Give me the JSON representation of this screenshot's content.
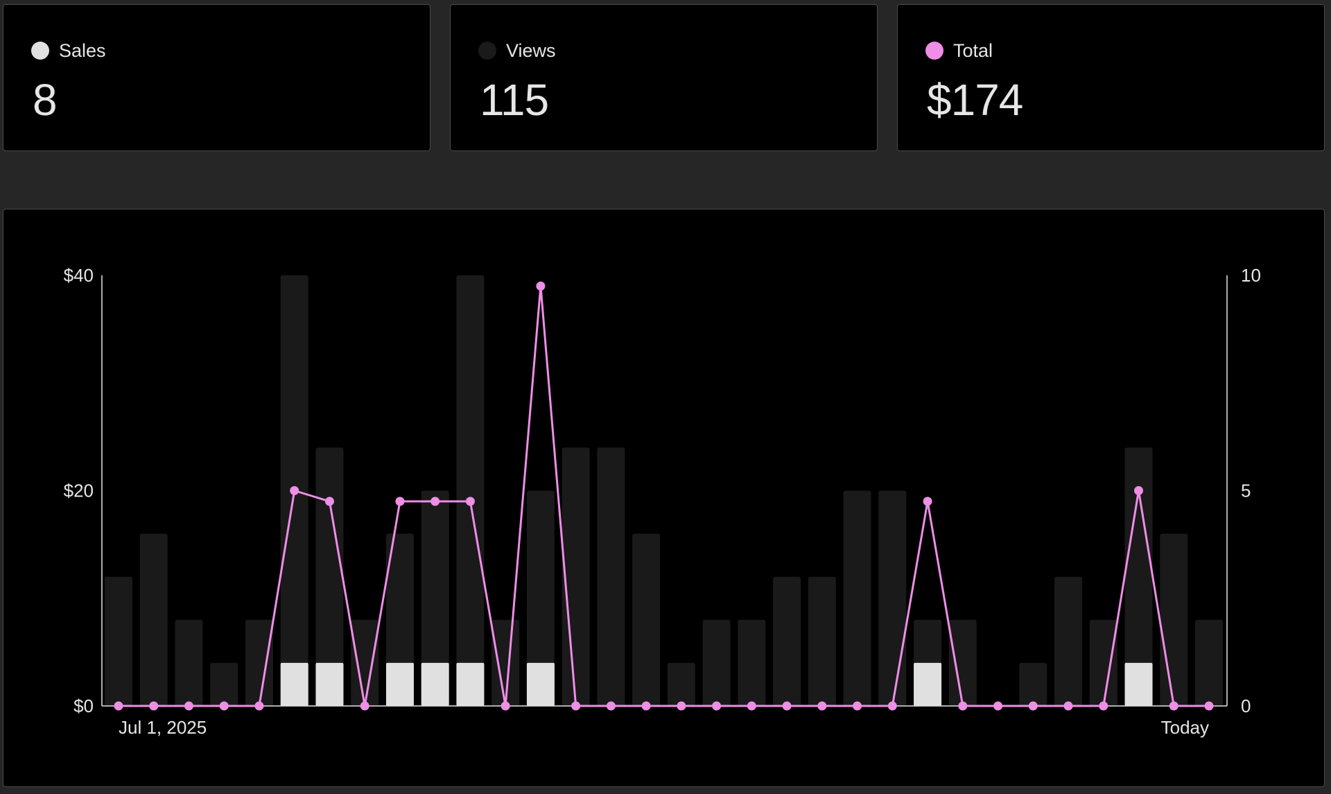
{
  "stats": [
    {
      "label": "Sales",
      "value": "8",
      "color": "#e0e0e0"
    },
    {
      "label": "Views",
      "value": "115",
      "color": "#1a1a1a"
    },
    {
      "label": "Total",
      "value": "$174",
      "color": "#ee8ee6"
    }
  ],
  "chart_data": {
    "type": "bar",
    "left_axis": {
      "ticks": [
        "$0",
        "$20",
        "$40"
      ],
      "range": [
        0,
        40
      ]
    },
    "right_axis": {
      "ticks": [
        "0",
        "5",
        "10"
      ],
      "range": [
        0,
        10
      ]
    },
    "x_labels": {
      "start": "Jul 1, 2025",
      "end": "Today"
    },
    "grid": false,
    "colors": {
      "views": "#1a1a1a",
      "sales": "#e0e0e0",
      "total": "#ee8ee6"
    },
    "series": [
      {
        "name": "Views",
        "axis": "right",
        "type": "bar",
        "values": [
          3,
          4,
          2,
          1,
          2,
          10,
          6,
          2,
          4,
          5,
          10,
          2,
          5,
          6,
          6,
          4,
          1,
          2,
          2,
          3,
          3,
          5,
          5,
          2,
          2,
          0,
          1,
          3,
          2,
          6,
          4,
          2
        ]
      },
      {
        "name": "Sales",
        "axis": "right",
        "type": "bar",
        "values": [
          0,
          0,
          0,
          0,
          0,
          1,
          1,
          0,
          1,
          1,
          1,
          0,
          1,
          0,
          0,
          0,
          0,
          0,
          0,
          0,
          0,
          0,
          0,
          1,
          0,
          0,
          0,
          0,
          0,
          1,
          0,
          0
        ]
      },
      {
        "name": "Total",
        "axis": "left",
        "type": "line",
        "values": [
          0,
          0,
          0,
          0,
          0,
          20,
          19,
          0,
          19,
          19,
          19,
          0,
          39,
          0,
          0,
          0,
          0,
          0,
          0,
          0,
          0,
          0,
          0,
          19,
          0,
          0,
          0,
          0,
          0,
          20,
          0,
          0
        ]
      }
    ]
  }
}
